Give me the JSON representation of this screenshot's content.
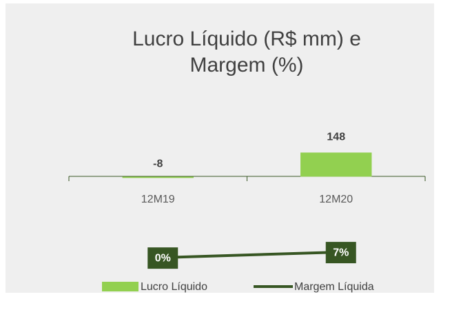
{
  "chart_data": {
    "type": "bar",
    "title": "Lucro Líquido (R$ mm) e Margem (%)",
    "categories": [
      "12M19",
      "12M20"
    ],
    "series": [
      {
        "name": "Lucro Líquido",
        "type": "bar",
        "color": "#92d050",
        "values": [
          -8,
          148
        ]
      },
      {
        "name": "Margem Líquida",
        "type": "line",
        "axis": "y2",
        "color": "#375623",
        "values": [
          0,
          7
        ],
        "value_labels": [
          "0%",
          "7%"
        ]
      }
    ],
    "ylim": [
      -150,
      600
    ],
    "y2lim": [
      -20,
      40
    ]
  }
}
